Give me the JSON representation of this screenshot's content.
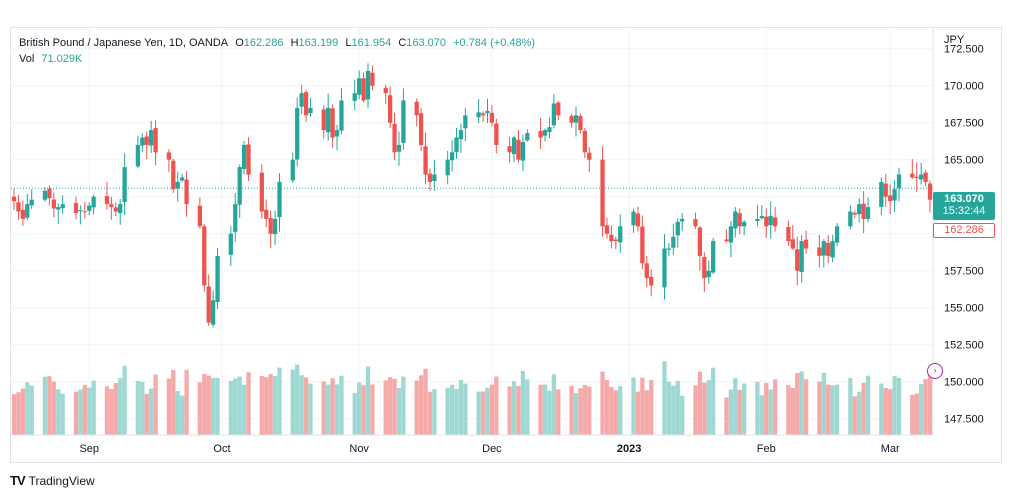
{
  "legend": {
    "symbol": "British Pound / Japanese Yen, 1D, OANDA",
    "o_label": "O",
    "o_value": "162.286",
    "h_label": "H",
    "h_value": "163.199",
    "l_label": "L",
    "l_value": "161.954",
    "c_label": "C",
    "c_value": "163.070",
    "change": "+0.784 (+0.48%)",
    "vol_label": "Vol",
    "vol_value": "71.029K"
  },
  "axis": {
    "currency": "JPY",
    "y_ticks": [
      "172.500",
      "170.000",
      "167.500",
      "165.000",
      "162.500",
      "160.000",
      "157.500",
      "155.000",
      "152.500",
      "150.000",
      "147.500"
    ],
    "x_ticks": [
      "Sep",
      "Oct",
      "Nov",
      "Dec",
      "2023",
      "Feb",
      "Mar"
    ]
  },
  "tags": {
    "last_price": "163.070",
    "countdown": "15:32:44",
    "open_price": "162.286"
  },
  "footer": {
    "brand": "TradingView",
    "logo": "TV"
  },
  "colors": {
    "up": "#26a69a",
    "down": "#ef5350",
    "vol_up": "#9fd8d2",
    "vol_down": "#f5a9a8",
    "grid": "#f0f3fa"
  },
  "chart_data": {
    "type": "candlestick",
    "title": "British Pound / Japanese Yen, 1D, OANDA",
    "ylabel": "JPY",
    "ylim": [
      146.4,
      173.9
    ],
    "x_start": "2022-08-15",
    "x_end": "2023-03-10",
    "closes": [
      162.2,
      161.5,
      161.0,
      162.0,
      162.3,
      162.9,
      162.4,
      161.7,
      161.8,
      162.0,
      161.4,
      161.6,
      161.5,
      161.9,
      162.5,
      162.0,
      161.8,
      161.5,
      162.0,
      164.5,
      166.0,
      166.5,
      166.0,
      167.0,
      165.5,
      165.0,
      163.0,
      163.5,
      163.8,
      162.0,
      160.5,
      156.5,
      154.0,
      155.5,
      158.5,
      160.0,
      162.0,
      164.5,
      166.0,
      164.0,
      161.5,
      161.0,
      160.0,
      161.0,
      163.5,
      165.0,
      168.5,
      169.5,
      168.0,
      168.5,
      167.0,
      168.5,
      166.5,
      167.0,
      169.0,
      169.5,
      170.5,
      169.0,
      171.0,
      170.0,
      169.5,
      167.5,
      165.5,
      166.0,
      169.0,
      168.0,
      166.0,
      164.0,
      163.5,
      164.0,
      165.0,
      165.5,
      166.5,
      167.0,
      168.0,
      168.2,
      168.0,
      168.3,
      167.5,
      166.0,
      165.5,
      166.5,
      165.0,
      166.2,
      166.8,
      166.5,
      167.0,
      167.2,
      168.8,
      168.0,
      167.5,
      168.0,
      167.0,
      165.5,
      165.0,
      160.5,
      160.0,
      159.5,
      159.5,
      160.5,
      161.5,
      160.5,
      158.0,
      157.0,
      156.5,
      159.0,
      159.0,
      159.8,
      160.8,
      161.0,
      160.5,
      158.5,
      157.0,
      157.5,
      159.5,
      159.5,
      160.5,
      161.5,
      160.5,
      160.8,
      161.0,
      161.2,
      160.5,
      161.2,
      160.5,
      159.5,
      159.0,
      157.5,
      159.5,
      159.0,
      158.5,
      159.5,
      158.5,
      159.5,
      160.5,
      161.5,
      161.3,
      162.0,
      161.0,
      161.8,
      163.5,
      162.5,
      162.2,
      163.0,
      164.0,
      163.8,
      163.8,
      164.0,
      163.5,
      162.3,
      163.07
    ],
    "volume_unit": "relative",
    "volume_range": [
      0.45,
      1.45
    ]
  }
}
